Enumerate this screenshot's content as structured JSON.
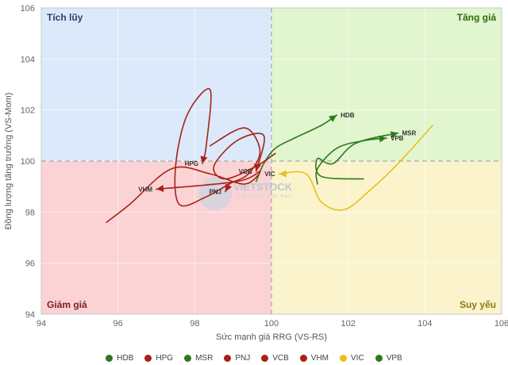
{
  "chart_data": {
    "type": "line",
    "subtype": "relative-rotation-graph",
    "title": "",
    "xlabel": "Sức mạnh giá RRG (VS-RS)",
    "ylabel": "Đồng lượng tăng trưởng (VS-Mom)",
    "xlim": [
      94,
      106
    ],
    "ylim": [
      94,
      106
    ],
    "xticks": [
      94,
      96,
      98,
      100,
      102,
      104,
      106
    ],
    "yticks": [
      94,
      96,
      98,
      100,
      102,
      104,
      106
    ],
    "center": [
      100,
      100
    ],
    "grid": true,
    "quadrants": [
      {
        "name": "Tích lũy",
        "color": "#dbe9fb",
        "text_color": "#2a3f6b",
        "corner": "top-left"
      },
      {
        "name": "Tăng giá",
        "color": "#e1f5cf",
        "text_color": "#2f6b10",
        "corner": "top-right"
      },
      {
        "name": "Giảm giá",
        "color": "#fbd3d4",
        "text_color": "#7a1f1f",
        "corner": "bottom-left"
      },
      {
        "name": "Suy yếu",
        "color": "#fbf3cc",
        "text_color": "#8a7a12",
        "corner": "bottom-right"
      }
    ],
    "series": [
      {
        "name": "HDB",
        "color": "#2b7a1e",
        "label": "HDB",
        "points": [
          [
            99.6,
            99.2
          ],
          [
            99.8,
            99.9
          ],
          [
            100.1,
            100.5
          ],
          [
            100.6,
            100.9
          ],
          [
            101.3,
            101.4
          ],
          [
            101.7,
            101.8
          ]
        ]
      },
      {
        "name": "HPG",
        "color": "#a82216",
        "label": "HPG",
        "points": [
          [
            99.0,
            99.2
          ],
          [
            98.3,
            98.6
          ],
          [
            97.6,
            98.3
          ],
          [
            97.5,
            99.8
          ],
          [
            97.8,
            101.8
          ],
          [
            98.4,
            102.8
          ],
          [
            98.3,
            100.6
          ],
          [
            98.2,
            99.9
          ]
        ]
      },
      {
        "name": "MSR",
        "color": "#2b7a1e",
        "label": "MSR",
        "points": [
          [
            102.4,
            99.3
          ],
          [
            101.3,
            99.4
          ],
          [
            101.2,
            100.1
          ],
          [
            101.6,
            99.9
          ],
          [
            102.2,
            100.7
          ],
          [
            103.3,
            101.1
          ]
        ]
      },
      {
        "name": "PNJ",
        "color": "#a82216",
        "label": "PNJ",
        "points": [
          [
            98.4,
            100.6
          ],
          [
            99.3,
            101.3
          ],
          [
            99.7,
            100.4
          ],
          [
            99.4,
            99.5
          ],
          [
            98.9,
            99.1
          ],
          [
            98.8,
            98.8
          ]
        ]
      },
      {
        "name": "VCB",
        "color": "#a82216",
        "label": "VCB",
        "points": [
          [
            100.1,
            100.3
          ],
          [
            99.6,
            99.8
          ],
          [
            98.8,
            99.3
          ],
          [
            98.5,
            99.8
          ],
          [
            99.1,
            100.8
          ],
          [
            99.8,
            101.0
          ],
          [
            99.6,
            99.6
          ]
        ]
      },
      {
        "name": "VHM",
        "color": "#a82216",
        "label": "VHM",
        "points": [
          [
            95.7,
            97.6
          ],
          [
            96.3,
            98.3
          ],
          [
            97.4,
            99.7
          ],
          [
            98.4,
            99.5
          ],
          [
            99.3,
            99.1
          ],
          [
            99.7,
            99.6
          ],
          [
            99.1,
            99.2
          ],
          [
            97.0,
            98.9
          ]
        ]
      },
      {
        "name": "VIC",
        "color": "#e8c01f",
        "label": "VIC",
        "points": [
          [
            104.2,
            101.4
          ],
          [
            103.3,
            99.9
          ],
          [
            102.6,
            98.9
          ],
          [
            101.9,
            98.1
          ],
          [
            101.3,
            98.4
          ],
          [
            100.9,
            99.5
          ],
          [
            100.2,
            99.5
          ]
        ]
      },
      {
        "name": "VPB",
        "color": "#2b7a1e",
        "label": "VPB",
        "points": [
          [
            101.2,
            99.1
          ],
          [
            101.2,
            99.7
          ],
          [
            101.7,
            100.5
          ],
          [
            102.4,
            100.8
          ],
          [
            103.0,
            100.9
          ]
        ]
      }
    ],
    "legend": "bottom-center"
  },
  "watermark": {
    "text": "VIETSTOCK",
    "sub": "Tài chính Việt Nam"
  }
}
